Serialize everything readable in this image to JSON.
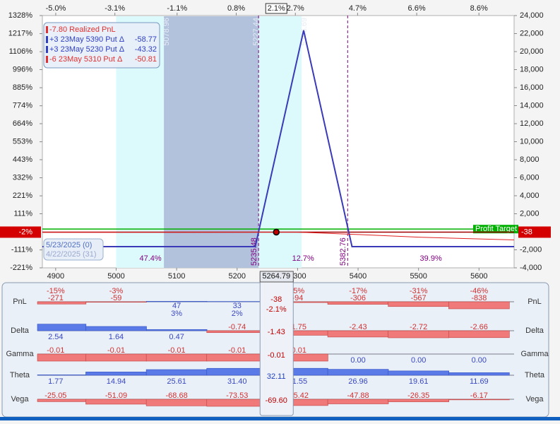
{
  "chart_data": {
    "type": "line",
    "xlim": [
      4878,
      5658
    ],
    "xticks": [
      4900,
      5000,
      5100,
      5200,
      5300,
      5400,
      5500,
      5600
    ],
    "x2lim": [
      -5.43,
      9.73
    ],
    "x2ticks": [
      {
        "value": -5.0,
        "label": "-5.0%"
      },
      {
        "value": -3.1,
        "label": "-3.1%"
      },
      {
        "value": -1.1,
        "label": "-1.1%"
      },
      {
        "value": 0.8,
        "label": "0.8%"
      },
      {
        "value": 2.7,
        "label": "2.7%"
      },
      {
        "value": 4.7,
        "label": "4.7%"
      },
      {
        "value": 6.6,
        "label": "6.6%"
      },
      {
        "value": 8.6,
        "label": "8.6%"
      }
    ],
    "ylim": [
      -4000,
      24000
    ],
    "yticks": [
      {
        "value": 24000,
        "label": "24,000"
      },
      {
        "value": 22000,
        "label": "22,000"
      },
      {
        "value": 20000,
        "label": "20,000"
      },
      {
        "value": 18000,
        "label": "18,000"
      },
      {
        "value": 16000,
        "label": "16,000"
      },
      {
        "value": 14000,
        "label": "14,000"
      },
      {
        "value": 12000,
        "label": "12,000"
      },
      {
        "value": 10000,
        "label": "10,000"
      },
      {
        "value": 8000,
        "label": "8,000"
      },
      {
        "value": 6000,
        "label": "6,000"
      },
      {
        "value": 4000,
        "label": "4,000"
      },
      {
        "value": 2000,
        "label": "2,000"
      },
      {
        "value": -2000,
        "label": "-2,000"
      },
      {
        "value": -4000,
        "label": "-4,000"
      }
    ],
    "y2lim": [
      -221,
      1328
    ],
    "y2ticks": [
      {
        "value": 1328,
        "label": "1328%"
      },
      {
        "value": 1217,
        "label": "1217%"
      },
      {
        "value": 1106,
        "label": "1106%"
      },
      {
        "value": 996,
        "label": "996%"
      },
      {
        "value": 885,
        "label": "885%"
      },
      {
        "value": 774,
        "label": "774%"
      },
      {
        "value": 664,
        "label": "664%"
      },
      {
        "value": 553,
        "label": "553%"
      },
      {
        "value": 443,
        "label": "443%"
      },
      {
        "value": 332,
        "label": "332%"
      },
      {
        "value": 221,
        "label": "221%"
      },
      {
        "value": 111,
        "label": "111%"
      },
      {
        "value": -111,
        "label": "-111%"
      },
      {
        "value": -221,
        "label": "-221%"
      }
    ],
    "series": [
      {
        "color": "#3a3ab8",
        "x": [
          4878,
          5230,
          5310,
          5390,
          5658
        ],
        "values": [
          -1644,
          -1644,
          22356,
          -1644,
          -1644
        ]
      },
      {
        "color": "#e02020",
        "x": [
          4878,
          5100,
          5250,
          5300,
          5400,
          5500,
          5658
        ],
        "values": [
          -60,
          -60,
          -40,
          -40,
          -300,
          -600,
          -900
        ]
      }
    ],
    "profit_target": {
      "label": "Profit Target",
      "value": 300,
      "color": "#00b000"
    },
    "current": {
      "price": 5264.79,
      "pct_label": "2.1%",
      "pnl": -38,
      "pnl_pct_label": "-2%"
    },
    "breakevens": [
      5235.48,
      5382.76
    ],
    "breakeven_probabilities": [
      "47.4%",
      "12.7%",
      "39.9%"
    ],
    "levels": [
      5078.96,
      5227.44,
      5306.69
    ],
    "shaded_ranges": [
      {
        "from": 5000,
        "to": 5306.69,
        "color": "#dcfafc"
      },
      {
        "from": 5078.96,
        "to": 5235.48,
        "color": "#b2c2dc"
      }
    ],
    "legend_box": [
      {
        "text": "-7.80 Realized PnL",
        "color": "#e03030"
      },
      {
        "text": "+3 23May 5390 Put Δ",
        "delta": -58.77,
        "color": "#3040c0"
      },
      {
        "text": "+3 23May 5230 Put Δ",
        "delta": -43.32,
        "color": "#3040c0"
      },
      {
        "text": "-6 23May 5310 Put Δ",
        "delta": -50.81,
        "color": "#e03030"
      }
    ],
    "dates": [
      "5/23/2025 (0)",
      "4/22/2025 (31)"
    ]
  },
  "greeks": {
    "rows": [
      {
        "name": "PnL",
        "values": [
          -271,
          -59,
          47,
          33,
          -38,
          -94,
          -306,
          -567,
          -838
        ],
        "pct_labels": [
          "-15%",
          "-3%",
          "3%",
          "2%",
          "-2.1%",
          "-5%",
          "-17%",
          "-31%",
          "-46%"
        ]
      },
      {
        "name": "Delta",
        "values": [
          2.54,
          1.64,
          0.47,
          -0.74,
          -1.43,
          -1.75,
          -2.43,
          -2.72,
          -2.66
        ]
      },
      {
        "name": "Gamma",
        "values": [
          -0.01,
          -0.01,
          -0.01,
          -0.01,
          -0.01,
          -0.01,
          0,
          0,
          0
        ],
        "value_labels": [
          "-0.01",
          "-0.01",
          "-0.01",
          "-0.01",
          "-0.01",
          "-0.01",
          "0.00",
          "0.00",
          "0.00"
        ]
      },
      {
        "name": "Theta",
        "values": [
          1.77,
          14.94,
          25.61,
          31.4,
          32.11,
          31.55,
          26.96,
          19.61,
          11.69
        ],
        "value_labels": [
          "1.77",
          "14.94",
          "25.61",
          "31.40",
          "32.11",
          "31.55",
          "26.96",
          "19.61",
          "11.69"
        ]
      },
      {
        "name": "Vega",
        "values": [
          -25.05,
          -51.09,
          -68.68,
          -73.53,
          -69.6,
          -65.42,
          -47.88,
          -26.35,
          -6.17
        ],
        "value_labels": [
          "-25.05",
          "-51.09",
          "-68.68",
          "-73.53",
          "-69.60",
          "-65.42",
          "-47.88",
          "-26.35",
          "-6.17"
        ]
      }
    ]
  }
}
